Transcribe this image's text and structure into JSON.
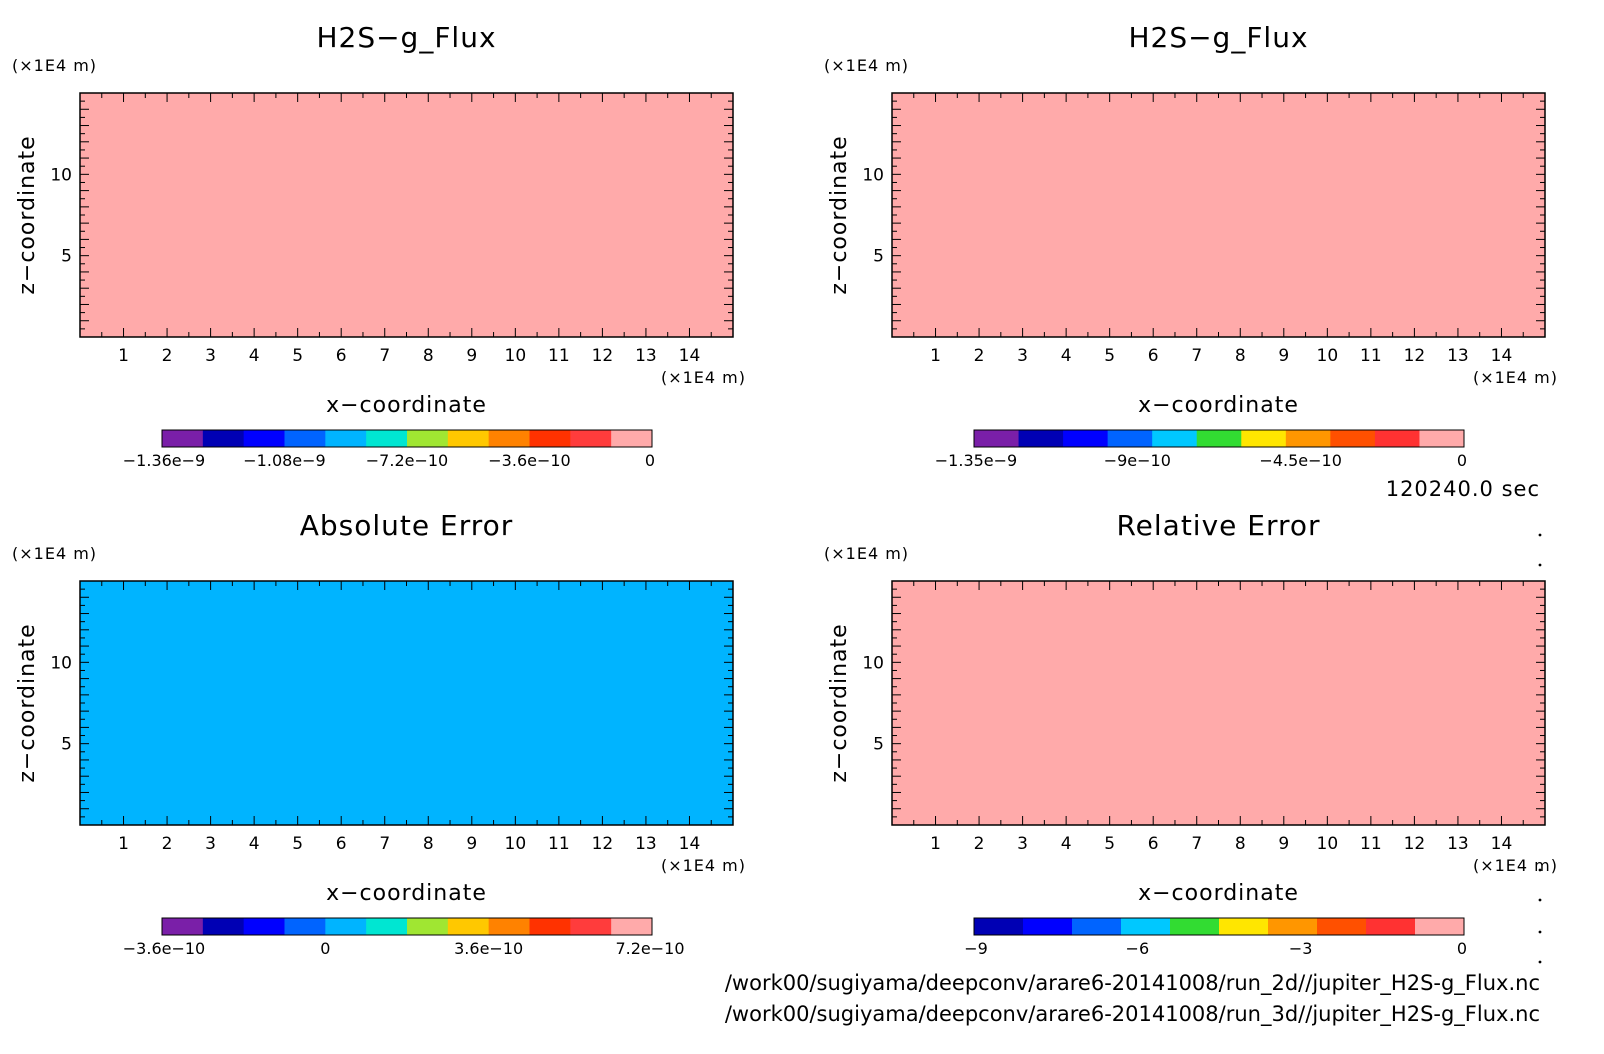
{
  "time_label": "120240.0 sec",
  "file_paths": [
    "/work00/sugiyama/deepconv/arare6-20141008/run_2d//jupiter_H2S-g_Flux.nc",
    "/work00/sugiyama/deepconv/arare6-20141008/run_3d//jupiter_H2S-g_Flux.nc"
  ],
  "chart_data": [
    {
      "type": "heatmap",
      "title": "H2S−g_Flux",
      "xlabel": "x−coordinate",
      "ylabel": "z−coordinate",
      "x_unit": "(×1E4 m)",
      "y_unit": "(×1E4 m)",
      "xlim": [
        0,
        15
      ],
      "ylim": [
        0,
        15
      ],
      "x_ticks": [
        "1",
        "2",
        "3",
        "4",
        "5",
        "6",
        "7",
        "8",
        "9",
        "10",
        "11",
        "12",
        "13",
        "14"
      ],
      "y_ticks": [
        "5",
        "10"
      ],
      "field_color": "#ffaaaa",
      "colorbar": {
        "colors": [
          "#7a1fa8",
          "#0000b4",
          "#0000ff",
          "#0064ff",
          "#00b4ff",
          "#00e6d2",
          "#a0e632",
          "#ffc800",
          "#ff8200",
          "#ff3200",
          "#ff3c3c",
          "#ffaaaa"
        ],
        "tick_labels": [
          "−1.36e−9",
          "−1.08e−9",
          "−7.2e−10",
          "−3.6e−10",
          "0"
        ]
      }
    },
    {
      "type": "heatmap",
      "title": "H2S−g_Flux",
      "xlabel": "x−coordinate",
      "ylabel": "z−coordinate",
      "x_unit": "(×1E4 m)",
      "y_unit": "(×1E4 m)",
      "xlim": [
        0,
        15
      ],
      "ylim": [
        0,
        15
      ],
      "x_ticks": [
        "1",
        "2",
        "3",
        "4",
        "5",
        "6",
        "7",
        "8",
        "9",
        "10",
        "11",
        "12",
        "13",
        "14"
      ],
      "y_ticks": [
        "5",
        "10"
      ],
      "field_color": "#ffaaaa",
      "colorbar": {
        "colors": [
          "#7a1fa8",
          "#0000b4",
          "#0000ff",
          "#0064ff",
          "#00c8ff",
          "#32dc32",
          "#ffe600",
          "#ff9600",
          "#ff5000",
          "#ff3232",
          "#ffaaaa"
        ],
        "tick_labels": [
          "−1.35e−9",
          "−9e−10",
          "−4.5e−10",
          "0"
        ]
      }
    },
    {
      "type": "heatmap",
      "title": "Absolute Error",
      "xlabel": "x−coordinate",
      "ylabel": "z−coordinate",
      "x_unit": "(×1E4 m)",
      "y_unit": "(×1E4 m)",
      "xlim": [
        0,
        15
      ],
      "ylim": [
        0,
        15
      ],
      "x_ticks": [
        "1",
        "2",
        "3",
        "4",
        "5",
        "6",
        "7",
        "8",
        "9",
        "10",
        "11",
        "12",
        "13",
        "14"
      ],
      "y_ticks": [
        "5",
        "10"
      ],
      "field_color": "#00b4ff",
      "colorbar": {
        "colors": [
          "#7a1fa8",
          "#0000b4",
          "#0000ff",
          "#0064ff",
          "#00b4ff",
          "#00e6d2",
          "#a0e632",
          "#ffc800",
          "#ff8200",
          "#ff3200",
          "#ff3c3c",
          "#ffaaaa"
        ],
        "tick_labels": [
          "−3.6e−10",
          "0",
          "3.6e−10",
          "7.2e−10"
        ]
      }
    },
    {
      "type": "heatmap",
      "title": "Relative Error",
      "xlabel": "x−coordinate",
      "ylabel": "z−coordinate",
      "x_unit": "(×1E4 m)",
      "y_unit": "(×1E4 m)",
      "xlim": [
        0,
        15
      ],
      "ylim": [
        0,
        15
      ],
      "x_ticks": [
        "1",
        "2",
        "3",
        "4",
        "5",
        "6",
        "7",
        "8",
        "9",
        "10",
        "11",
        "12",
        "13",
        "14"
      ],
      "y_ticks": [
        "5",
        "10"
      ],
      "field_color": "#ffaaaa",
      "colorbar": {
        "colors": [
          "#0000b4",
          "#0000ff",
          "#0064ff",
          "#00c8ff",
          "#32dc32",
          "#ffe600",
          "#ff9600",
          "#ff5000",
          "#ff3232",
          "#ffaaaa"
        ],
        "tick_labels": [
          "−9",
          "−6",
          "−3",
          "0"
        ]
      }
    }
  ]
}
